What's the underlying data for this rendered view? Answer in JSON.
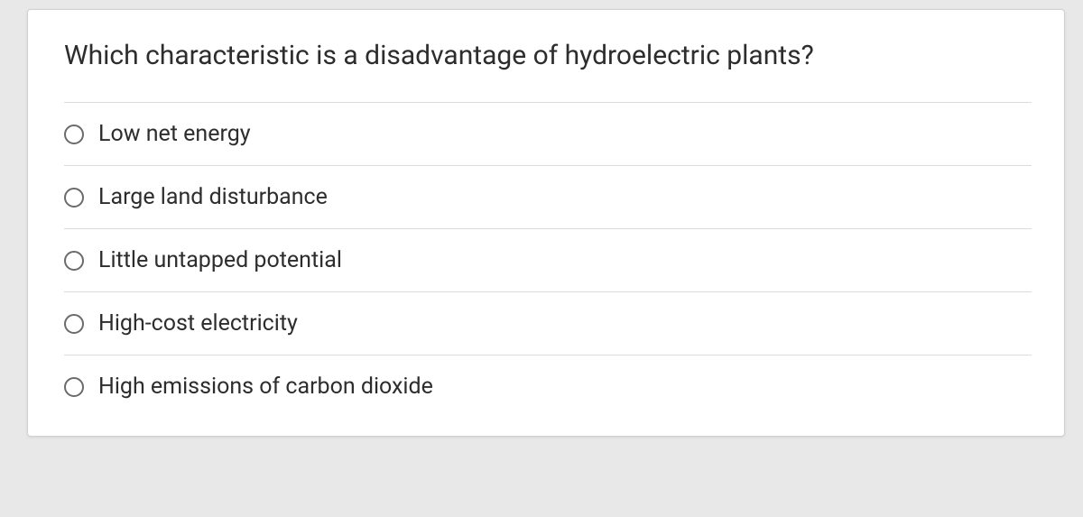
{
  "question": {
    "text": "Which characteristic is a disadvantage of hydroelectric plants?",
    "text_fontsize": 30,
    "text_color": "#2d2d2d",
    "options": [
      {
        "label": "Low net energy",
        "selected": false
      },
      {
        "label": "Large land disturbance",
        "selected": false
      },
      {
        "label": "Little untapped potential",
        "selected": false
      },
      {
        "label": "High-cost electricity",
        "selected": false
      },
      {
        "label": "High emissions of carbon dioxide",
        "selected": false
      }
    ],
    "option_fontsize": 25,
    "option_color": "#2d2d2d"
  },
  "styling": {
    "card_background": "#ffffff",
    "card_border_color": "#d0d0d0",
    "page_background": "#e8e8e8",
    "divider_color": "#dcdcdc",
    "radio_border_color": "#6b6b6b"
  }
}
